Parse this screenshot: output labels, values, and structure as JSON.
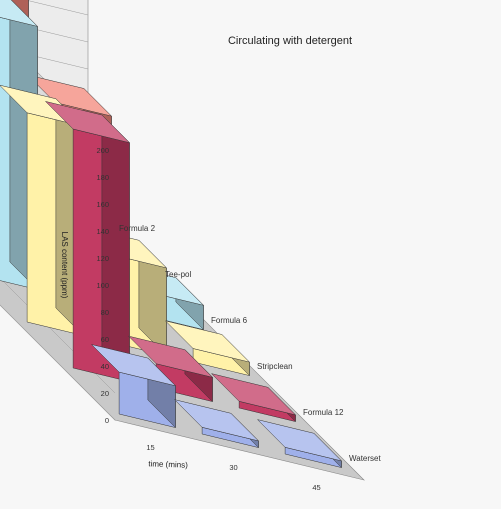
{
  "chart_data": {
    "type": "bar",
    "subtype": "3d-bar",
    "title": "Circulating with detergent",
    "xlabel": "time (mins)",
    "ylabel": "LAS content (ppm)",
    "ylim": [
      0,
      200
    ],
    "yticks": [
      0,
      20,
      40,
      60,
      80,
      100,
      120,
      140,
      160,
      180,
      200
    ],
    "categories": [
      "15",
      "30",
      "45"
    ],
    "series": [
      {
        "name": "Waterset",
        "color": "#9fb0ea",
        "values": [
          31,
          5,
          5
        ]
      },
      {
        "name": "Formula 12",
        "color": "#c23b63",
        "values": [
          177,
          18,
          5
        ]
      },
      {
        "name": "Stripclean",
        "color": "#fff2a8",
        "values": [
          155,
          65,
          10
        ]
      },
      {
        "name": "Formula 6",
        "color": "#b3e3f0",
        "values": [
          195,
          45,
          18
        ]
      },
      {
        "name": "Tee-pol",
        "color": "#8c1c5c",
        "values": [
          190,
          78,
          7
        ]
      },
      {
        "name": "Formula 2",
        "color": "#f3877a",
        "values": [
          190,
          195,
          90
        ]
      }
    ],
    "grid": true,
    "legend": "none"
  }
}
